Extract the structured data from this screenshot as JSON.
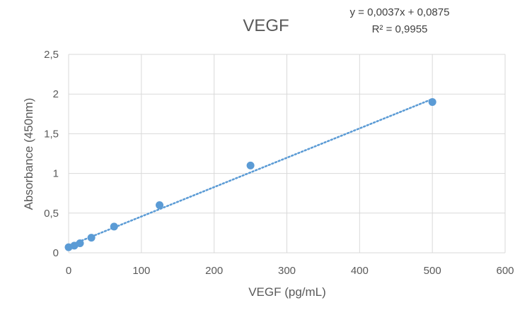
{
  "chart_data": {
    "type": "scatter",
    "title": "VEGF",
    "xlabel": "VEGF (pg/mL)",
    "ylabel": "Absorbance (450nm)",
    "xlim": [
      0,
      600
    ],
    "ylim": [
      0,
      2.5
    ],
    "x_ticks": [
      "0",
      "100",
      "200",
      "300",
      "400",
      "500",
      "600"
    ],
    "y_ticks": [
      "0",
      "0,5",
      "1",
      "1,5",
      "2",
      "2,5"
    ],
    "grid": true,
    "series": [
      {
        "color": "#5b9bd5",
        "points": [
          {
            "x": 0,
            "y": 0.07
          },
          {
            "x": 7.8,
            "y": 0.09
          },
          {
            "x": 15.6,
            "y": 0.12
          },
          {
            "x": 31.25,
            "y": 0.19
          },
          {
            "x": 62.5,
            "y": 0.33
          },
          {
            "x": 125,
            "y": 0.6
          },
          {
            "x": 250,
            "y": 1.1
          },
          {
            "x": 500,
            "y": 1.9
          }
        ]
      }
    ],
    "trendline": {
      "type": "linear",
      "style": "dotted",
      "slope": 0.0037,
      "intercept": 0.0875,
      "x_range": [
        0,
        500
      ],
      "equation_label": "y = 0,0037x + 0,0875",
      "r2_label": "R² = 0,9955"
    },
    "colors": {
      "marker": "#5b9bd5",
      "gridline": "#d9d9d9",
      "axis_text": "#595959"
    }
  }
}
